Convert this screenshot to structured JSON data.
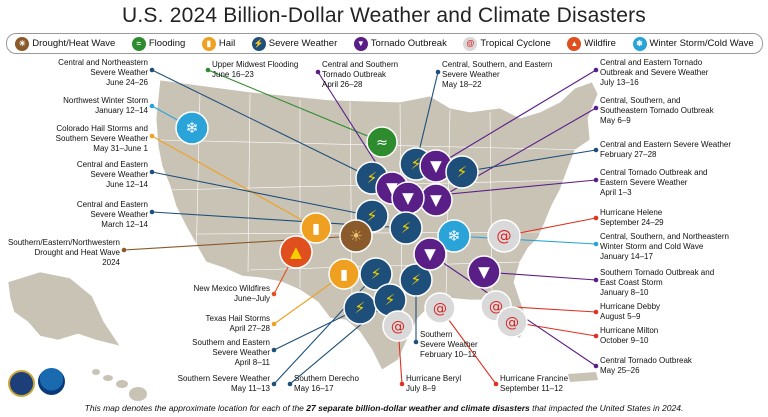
{
  "title": "U.S. 2024 Billion-Dollar Weather and Climate Disasters",
  "legend": [
    {
      "label": "Drought/Heat Wave",
      "icon": "drought-icon",
      "color": "#8a5a2b"
    },
    {
      "label": "Flooding",
      "icon": "flood-icon",
      "color": "#2e8b2e"
    },
    {
      "label": "Hail",
      "icon": "hail-icon",
      "color": "#f0a020"
    },
    {
      "label": "Severe Weather",
      "icon": "severe-weather-icon",
      "color": "#1e4f7a"
    },
    {
      "label": "Tornado Outbreak",
      "icon": "tornado-icon",
      "color": "#5a1f86"
    },
    {
      "label": "Tropical Cyclone",
      "icon": "tropical-cyclone-icon",
      "color": "#d9d9d9"
    },
    {
      "label": "Wildfire",
      "icon": "wildfire-icon",
      "color": "#e0501e"
    },
    {
      "label": "Winter Storm/Cold Wave",
      "icon": "winter-storm-icon",
      "color": "#2aa3d9"
    }
  ],
  "events": [
    {
      "label": "Central and Northeastern\nSevere Weather\nJune 24–26"
    },
    {
      "label": "Upper Midwest Flooding\nJune 16–23"
    },
    {
      "label": "Central and Southern\nTornado Outbreak\nApril 26–28"
    },
    {
      "label": "Central, Southern, and Eastern\nSevere Weather\nMay 18–22"
    },
    {
      "label": "Central and Eastern Tornado\nOutbreak and Severe Weather\nJuly 13–16"
    },
    {
      "label": "Northwest Winter Storm\nJanuary 12–14"
    },
    {
      "label": "Central, Southern, and\nSoutheastern Tornado Outbreak\nMay 6–9"
    },
    {
      "label": "Colorado Hail Storms and\nSouthern Severe Weather\nMay 31–June 1"
    },
    {
      "label": "Central and Eastern Severe Weather\nFebruary 27–28"
    },
    {
      "label": "Central and Eastern\nSevere Weather\nJune 12–14"
    },
    {
      "label": "Central Tornado Outbreak and\nEastern Severe Weather\nApril 1–3"
    },
    {
      "label": "Central and Eastern\nSevere Weather\nMarch 12–14"
    },
    {
      "label": "Hurricane Helene\nSeptember 24–29"
    },
    {
      "label": "Southern/Eastern/Northwestern\nDrought and Heat Wave\n2024"
    },
    {
      "label": "Central, Southern, and Northeastern\nWinter Storm and Cold Wave\nJanuary 14–17"
    },
    {
      "label": "New Mexico Wildfires\nJune–July"
    },
    {
      "label": "Southern Tornado Outbreak and\nEast Coast Storm\nJanuary 8–10"
    },
    {
      "label": "Texas Hail Storms\nApril 27–28"
    },
    {
      "label": "Hurricane Debby\nAugust 5–9"
    },
    {
      "label": "Southern and Eastern\nSevere Weather\nApril 8–11"
    },
    {
      "label": "Southern\nSevere Weather\nFebruary 10–12"
    },
    {
      "label": "Hurricane Milton\nOctober 9–10"
    },
    {
      "label": "Central Tornado Outbreak\nMay 25–26"
    },
    {
      "label": "Southern Severe Weather\nMay 11–13"
    },
    {
      "label": "Southern Derecho\nMay 16–17"
    },
    {
      "label": "Hurricane Beryl\nJuly 8–9"
    },
    {
      "label": "Hurricane Francine\nSeptember 11–12"
    }
  ],
  "footer": {
    "prefix": "This map denotes the approximate location for each of the ",
    "emphasis": "27 separate billion-dollar weather and climate disasters",
    "suffix": " that impacted the United States in 2024."
  }
}
